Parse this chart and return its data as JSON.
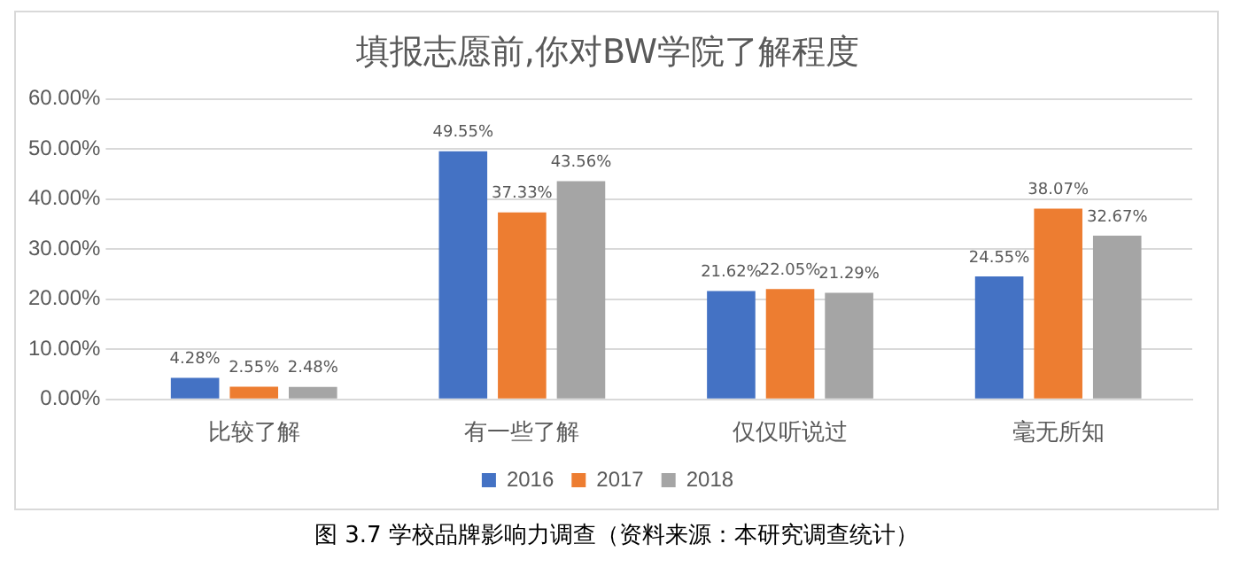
{
  "chart_data": {
    "type": "bar",
    "title": "填报志愿前,你对BW学院了解程度",
    "categories": [
      "比较了解",
      "有一些了解",
      "仅仅听说过",
      "毫无所知"
    ],
    "series": [
      {
        "name": "2016",
        "color": "#4472c4",
        "values": [
          4.28,
          49.55,
          21.62,
          24.55
        ],
        "value_labels": [
          "4.28%",
          "49.55%",
          "21.62%",
          "24.55%"
        ]
      },
      {
        "name": "2017",
        "color": "#ed7d31",
        "values": [
          2.55,
          37.33,
          22.05,
          38.07
        ],
        "value_labels": [
          "2.55%",
          "37.33%",
          "22.05%",
          "38.07%"
        ]
      },
      {
        "name": "2018",
        "color": "#a5a5a5",
        "values": [
          2.48,
          43.56,
          21.29,
          32.67
        ],
        "value_labels": [
          "2.48%",
          "43.56%",
          "21.29%",
          "32.67%"
        ]
      }
    ],
    "ylim": [
      0,
      60
    ],
    "yticks": [
      {
        "value": 0,
        "label": "0.00%"
      },
      {
        "value": 10,
        "label": "10.00%"
      },
      {
        "value": 20,
        "label": "20.00%"
      },
      {
        "value": 30,
        "label": "30.00%"
      },
      {
        "value": 40,
        "label": "40.00%"
      },
      {
        "value": 50,
        "label": "50.00%"
      },
      {
        "value": 60,
        "label": "60.00%"
      }
    ],
    "grid": "y",
    "legend": "bottom",
    "annotations": [
      "图 3.7 学校品牌影响力调查（资料来源：本研究调查统计）"
    ]
  }
}
